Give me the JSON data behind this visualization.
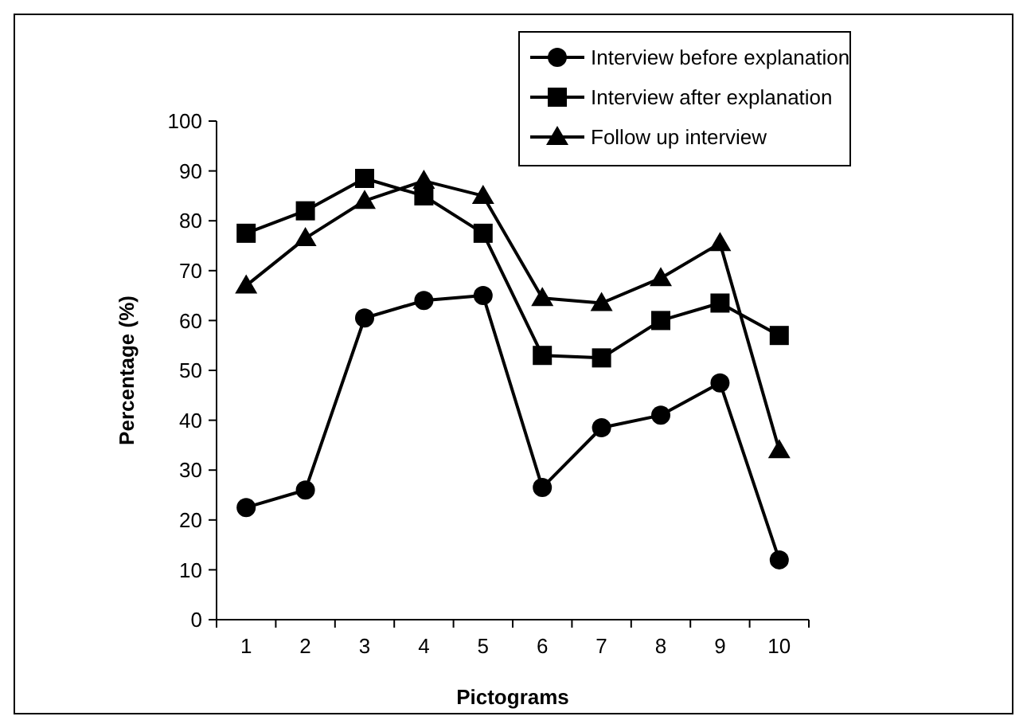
{
  "chart_data": {
    "type": "line",
    "xlabel": "Pictograms",
    "ylabel": "Percentage (%)",
    "categories": [
      "1",
      "2",
      "3",
      "4",
      "5",
      "6",
      "7",
      "8",
      "9",
      "10"
    ],
    "series": [
      {
        "name": "Interview before explanation",
        "color": "#000000",
        "marker": "circle",
        "values": [
          22.5,
          26,
          60.5,
          64,
          65,
          26.5,
          38.5,
          41,
          47.5,
          12
        ]
      },
      {
        "name": "Interview after explanation",
        "color": "#000000",
        "marker": "square",
        "values": [
          77.5,
          82,
          88.5,
          85,
          77.5,
          53,
          52.5,
          60,
          63.5,
          57
        ]
      },
      {
        "name": "Follow up interview",
        "color": "#000000",
        "marker": "triangle",
        "values": [
          67,
          76.5,
          84,
          88,
          85,
          64.5,
          63.5,
          68.5,
          75.5,
          34
        ]
      }
    ],
    "ylim": [
      0,
      100
    ],
    "yticks": [
      0,
      10,
      20,
      30,
      40,
      50,
      60,
      70,
      80,
      90,
      100
    ],
    "legend": "top right",
    "grid": false,
    "line_style": "solid"
  }
}
